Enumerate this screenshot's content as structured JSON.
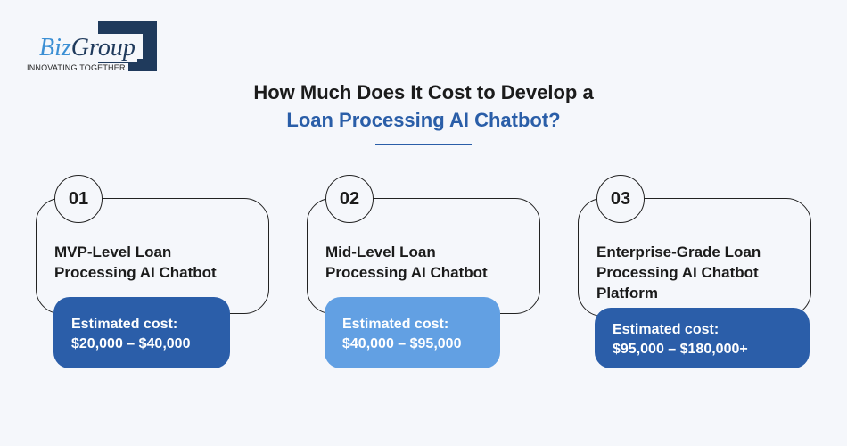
{
  "logo": {
    "brand_part1": "Biz",
    "brand_part2": "Group",
    "tagline": "INNOVATING TOGETHER"
  },
  "title": {
    "line1": "How Much Does It Cost to Develop a",
    "line2": "Loan Processing AI Chatbot?"
  },
  "colors": {
    "accent": "#2a5ea8",
    "cost_dark": "#2b5ea9",
    "cost_light": "#62a0e3"
  },
  "cards": [
    {
      "number": "01",
      "title": "MVP-Level Loan Processing AI Chatbot",
      "cost_label": "Estimated cost:",
      "cost_range": "$20,000 – $40,000"
    },
    {
      "number": "02",
      "title": "Mid-Level Loan Processing AI Chatbot",
      "cost_label": "Estimated cost:",
      "cost_range": "$40,000 – $95,000"
    },
    {
      "number": "03",
      "title": "Enterprise-Grade Loan Processing AI Chatbot Platform",
      "cost_label": "Estimated cost:",
      "cost_range": "$95,000 – $180,000+"
    }
  ]
}
